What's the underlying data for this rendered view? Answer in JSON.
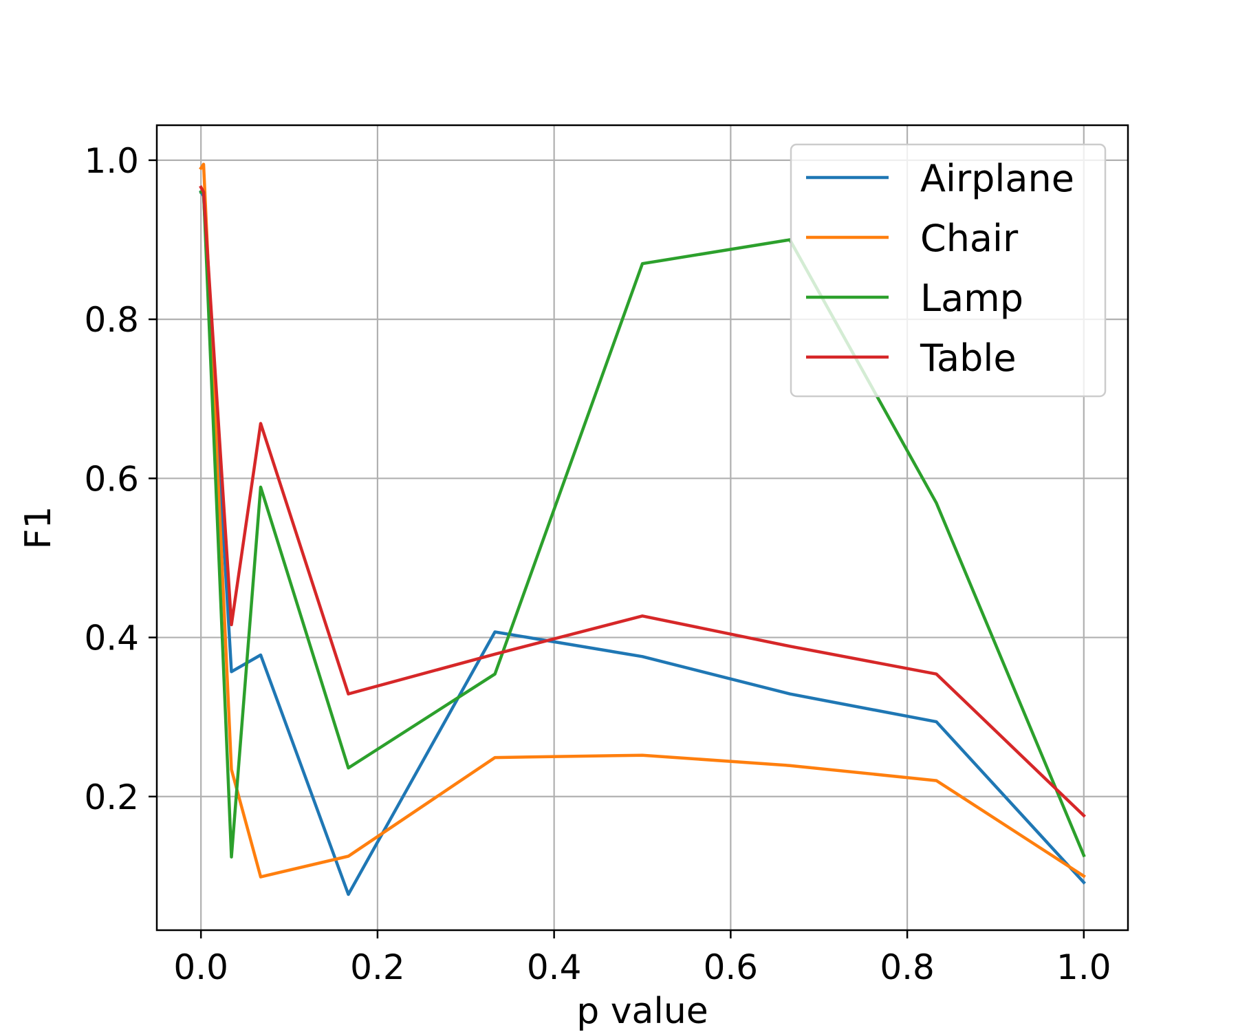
{
  "chart_data": {
    "type": "line",
    "xlabel": "p value",
    "ylabel": "F1",
    "xlim": [
      -0.05,
      1.05
    ],
    "ylim": [
      0.032,
      1.044
    ],
    "xticks": [
      0.0,
      0.2,
      0.4,
      0.6,
      0.8,
      1.0
    ],
    "xtick_labels": [
      "0.0",
      "0.2",
      "0.4",
      "0.6",
      "0.8",
      "1.0"
    ],
    "yticks": [
      0.2,
      0.4,
      0.6,
      0.8,
      1.0
    ],
    "ytick_labels": [
      "0.2",
      "0.4",
      "0.6",
      "0.8",
      "1.0"
    ],
    "grid": true,
    "legend_position": "top-right",
    "series": [
      {
        "name": "Airplane",
        "color": "#1f77b4",
        "points": [
          [
            0.0,
            0.96
          ],
          [
            0.003,
            0.955
          ],
          [
            0.0345,
            0.357
          ],
          [
            0.0676,
            0.378
          ],
          [
            0.167,
            0.077
          ],
          [
            0.333,
            0.407
          ],
          [
            0.5,
            0.376
          ],
          [
            0.667,
            0.329
          ],
          [
            0.833,
            0.294
          ],
          [
            1.0,
            0.092
          ]
        ]
      },
      {
        "name": "Chair",
        "color": "#ff7f0e",
        "points": [
          [
            0.0,
            0.99
          ],
          [
            0.003,
            0.995
          ],
          [
            0.0345,
            0.234
          ],
          [
            0.0676,
            0.099
          ],
          [
            0.167,
            0.125
          ],
          [
            0.333,
            0.249
          ],
          [
            0.5,
            0.252
          ],
          [
            0.667,
            0.239
          ],
          [
            0.833,
            0.22
          ],
          [
            1.0,
            0.1
          ]
        ]
      },
      {
        "name": "Lamp",
        "color": "#2ca02c",
        "points": [
          [
            0.0,
            0.96
          ],
          [
            0.003,
            0.96
          ],
          [
            0.0345,
            0.124
          ],
          [
            0.0676,
            0.589
          ],
          [
            0.167,
            0.236
          ],
          [
            0.333,
            0.354
          ],
          [
            0.5,
            0.87
          ],
          [
            0.667,
            0.9
          ],
          [
            0.833,
            0.569
          ],
          [
            1.0,
            0.126
          ]
        ]
      },
      {
        "name": "Table",
        "color": "#d62728",
        "points": [
          [
            0.0,
            0.966
          ],
          [
            0.003,
            0.96
          ],
          [
            0.0345,
            0.416
          ],
          [
            0.0676,
            0.669
          ],
          [
            0.167,
            0.329
          ],
          [
            0.333,
            0.379
          ],
          [
            0.5,
            0.427
          ],
          [
            0.667,
            0.389
          ],
          [
            0.833,
            0.354
          ],
          [
            1.0,
            0.176
          ]
        ]
      }
    ]
  }
}
